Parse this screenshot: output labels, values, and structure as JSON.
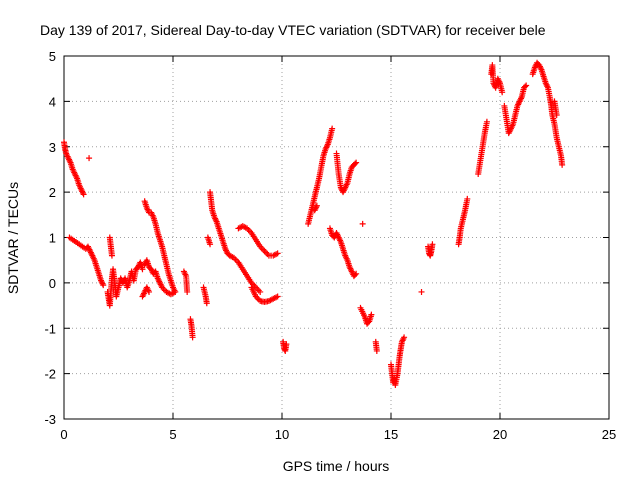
{
  "chart_data": {
    "type": "scatter",
    "title": "Day 139 of 2017, Sidereal Day-to-day VTEC variation (SDTVAR) for receiver bele",
    "xlabel": "GPS time / hours",
    "ylabel": "SDTVAR / TECUs",
    "xlim": [
      0,
      25
    ],
    "ylim": [
      -3,
      5
    ],
    "xticks": [
      0,
      5,
      10,
      15,
      20,
      25
    ],
    "yticks": [
      -3,
      -2,
      -1,
      0,
      1,
      2,
      3,
      4,
      5
    ],
    "grid": true,
    "marker": "+",
    "color": "#ff0000",
    "series": [
      {
        "name": "SDTVAR",
        "segments": [
          [
            [
              0.0,
              3.1
            ],
            [
              0.05,
              2.95
            ],
            [
              0.1,
              2.85
            ],
            [
              0.2,
              2.75
            ],
            [
              0.3,
              2.65
            ],
            [
              0.4,
              2.5
            ],
            [
              0.5,
              2.4
            ],
            [
              0.6,
              2.3
            ],
            [
              0.7,
              2.15
            ],
            [
              0.8,
              2.05
            ],
            [
              0.9,
              1.95
            ]
          ],
          [
            [
              1.15,
              2.75
            ]
          ],
          [
            [
              0.25,
              1.0
            ],
            [
              0.4,
              0.95
            ],
            [
              0.55,
              0.9
            ],
            [
              0.7,
              0.85
            ],
            [
              0.85,
              0.8
            ],
            [
              1.0,
              0.75
            ],
            [
              1.1,
              0.8
            ],
            [
              1.2,
              0.7
            ],
            [
              1.3,
              0.6
            ],
            [
              1.4,
              0.5
            ],
            [
              1.5,
              0.35
            ],
            [
              1.6,
              0.2
            ],
            [
              1.7,
              0.05
            ],
            [
              1.8,
              -0.05
            ]
          ],
          [
            [
              2.0,
              -0.2
            ],
            [
              2.05,
              -0.35
            ],
            [
              2.1,
              -0.5
            ],
            [
              2.15,
              -0.2
            ],
            [
              2.2,
              0.1
            ],
            [
              2.25,
              0.3
            ],
            [
              2.3,
              0.1
            ],
            [
              2.35,
              -0.1
            ],
            [
              2.4,
              -0.3
            ],
            [
              2.5,
              -0.1
            ],
            [
              2.6,
              0.1
            ],
            [
              2.7,
              0.0
            ],
            [
              2.8,
              0.1
            ],
            [
              2.9,
              -0.1
            ],
            [
              3.0,
              0.05
            ],
            [
              3.1,
              0.25
            ],
            [
              3.2,
              0.05
            ],
            [
              3.3,
              0.3
            ],
            [
              3.4,
              0.35
            ],
            [
              3.5,
              0.45
            ],
            [
              3.6,
              0.3
            ]
          ],
          [
            [
              2.1,
              1.0
            ],
            [
              2.15,
              0.8
            ],
            [
              2.2,
              0.6
            ]
          ],
          [
            [
              3.7,
              0.4
            ],
            [
              3.8,
              0.5
            ],
            [
              3.9,
              0.35
            ],
            [
              4.0,
              0.3
            ],
            [
              4.1,
              0.2
            ],
            [
              4.2,
              0.25
            ],
            [
              4.3,
              0.1
            ],
            [
              4.4,
              0.0
            ],
            [
              4.5,
              -0.1
            ],
            [
              4.7,
              -0.2
            ],
            [
              4.9,
              -0.25
            ],
            [
              5.1,
              -0.2
            ]
          ],
          [
            [
              3.6,
              -0.3
            ],
            [
              3.7,
              -0.2
            ],
            [
              3.8,
              -0.1
            ],
            [
              3.9,
              -0.2
            ]
          ],
          [
            [
              3.7,
              1.8
            ],
            [
              3.8,
              1.65
            ],
            [
              3.9,
              1.55
            ],
            [
              4.0,
              1.55
            ],
            [
              4.1,
              1.45
            ],
            [
              4.2,
              1.3
            ],
            [
              4.3,
              1.1
            ],
            [
              4.4,
              0.95
            ],
            [
              4.5,
              0.8
            ],
            [
              4.6,
              0.6
            ],
            [
              4.7,
              0.4
            ],
            [
              4.8,
              0.2
            ],
            [
              4.9,
              0.05
            ],
            [
              5.0,
              -0.1
            ],
            [
              5.1,
              -0.2
            ]
          ],
          [
            [
              5.5,
              0.25
            ],
            [
              5.6,
              0.15
            ],
            [
              5.65,
              -0.2
            ]
          ],
          [
            [
              5.8,
              -0.8
            ],
            [
              5.85,
              -0.95
            ],
            [
              5.9,
              -1.2
            ]
          ],
          [
            [
              6.4,
              -0.1
            ],
            [
              6.5,
              -0.3
            ],
            [
              6.55,
              -0.45
            ]
          ],
          [
            [
              6.7,
              2.0
            ],
            [
              6.75,
              1.8
            ],
            [
              6.8,
              1.6
            ],
            [
              6.9,
              1.45
            ],
            [
              7.0,
              1.35
            ],
            [
              7.1,
              1.2
            ],
            [
              7.2,
              1.05
            ],
            [
              7.3,
              0.9
            ],
            [
              7.4,
              0.75
            ],
            [
              7.5,
              0.65
            ],
            [
              7.6,
              0.6
            ],
            [
              7.8,
              0.55
            ],
            [
              8.0,
              0.45
            ],
            [
              8.2,
              0.3
            ],
            [
              8.4,
              0.15
            ],
            [
              8.6,
              0.0
            ],
            [
              8.8,
              -0.1
            ],
            [
              9.0,
              -0.2
            ]
          ],
          [
            [
              6.6,
              1.0
            ],
            [
              6.7,
              0.85
            ]
          ],
          [
            [
              8.0,
              1.2
            ],
            [
              8.2,
              1.25
            ],
            [
              8.4,
              1.2
            ],
            [
              8.6,
              1.1
            ],
            [
              8.8,
              0.95
            ],
            [
              9.0,
              0.8
            ],
            [
              9.2,
              0.7
            ],
            [
              9.4,
              0.6
            ],
            [
              9.6,
              0.6
            ],
            [
              9.8,
              0.65
            ]
          ],
          [
            [
              8.6,
              -0.1
            ],
            [
              8.8,
              -0.3
            ],
            [
              9.0,
              -0.4
            ],
            [
              9.2,
              -0.42
            ],
            [
              9.4,
              -0.4
            ],
            [
              9.6,
              -0.35
            ],
            [
              9.8,
              -0.3
            ]
          ],
          [
            [
              10.05,
              -1.3
            ],
            [
              10.1,
              -1.45
            ],
            [
              10.15,
              -1.5
            ],
            [
              10.2,
              -1.35
            ]
          ],
          [
            [
              11.2,
              1.3
            ],
            [
              11.3,
              1.5
            ],
            [
              11.4,
              1.7
            ],
            [
              11.5,
              1.9
            ],
            [
              11.6,
              2.1
            ],
            [
              11.7,
              2.3
            ],
            [
              11.8,
              2.55
            ],
            [
              11.9,
              2.8
            ],
            [
              12.0,
              2.95
            ],
            [
              12.1,
              3.05
            ],
            [
              12.2,
              3.2
            ],
            [
              12.3,
              3.4
            ]
          ],
          [
            [
              11.5,
              1.6
            ],
            [
              11.6,
              1.7
            ]
          ],
          [
            [
              12.2,
              1.2
            ],
            [
              12.3,
              1.05
            ],
            [
              12.4,
              1.0
            ],
            [
              12.5,
              1.1
            ],
            [
              12.6,
              1.0
            ],
            [
              12.7,
              0.9
            ],
            [
              12.8,
              0.75
            ],
            [
              12.9,
              0.6
            ],
            [
              13.0,
              0.5
            ],
            [
              13.1,
              0.35
            ],
            [
              13.2,
              0.25
            ],
            [
              13.3,
              0.15
            ],
            [
              13.4,
              0.2
            ]
          ],
          [
            [
              12.5,
              2.85
            ],
            [
              12.6,
              2.4
            ],
            [
              12.7,
              2.1
            ],
            [
              12.8,
              2.0
            ],
            [
              12.9,
              2.1
            ],
            [
              13.0,
              2.2
            ],
            [
              13.1,
              2.4
            ],
            [
              13.2,
              2.55
            ],
            [
              13.3,
              2.6
            ],
            [
              13.4,
              2.65
            ]
          ],
          [
            [
              13.7,
              1.3
            ]
          ],
          [
            [
              13.6,
              -0.55
            ],
            [
              13.8,
              -0.75
            ],
            [
              13.9,
              -0.9
            ],
            [
              14.0,
              -0.85
            ],
            [
              14.1,
              -0.7
            ]
          ],
          [
            [
              14.3,
              -1.3
            ],
            [
              14.35,
              -1.5
            ]
          ],
          [
            [
              15.0,
              -1.8
            ],
            [
              15.05,
              -2.0
            ],
            [
              15.1,
              -2.2
            ],
            [
              15.15,
              -2.1
            ],
            [
              15.2,
              -2.25
            ],
            [
              15.3,
              -2.0
            ],
            [
              15.35,
              -1.8
            ],
            [
              15.4,
              -1.6
            ],
            [
              15.45,
              -1.45
            ],
            [
              15.5,
              -1.3
            ],
            [
              15.6,
              -1.2
            ]
          ],
          [
            [
              16.4,
              -0.2
            ]
          ],
          [
            [
              16.7,
              0.8
            ],
            [
              16.75,
              0.65
            ],
            [
              16.8,
              0.6
            ],
            [
              16.85,
              0.7
            ],
            [
              16.9,
              0.85
            ]
          ],
          [
            [
              18.1,
              0.85
            ],
            [
              18.15,
              1.0
            ],
            [
              18.2,
              1.2
            ],
            [
              18.3,
              1.4
            ],
            [
              18.4,
              1.6
            ],
            [
              18.5,
              1.85
            ]
          ],
          [
            [
              19.0,
              2.4
            ],
            [
              19.1,
              2.7
            ],
            [
              19.2,
              3.0
            ],
            [
              19.3,
              3.3
            ],
            [
              19.4,
              3.55
            ]
          ],
          [
            [
              19.6,
              4.6
            ],
            [
              19.65,
              4.8
            ],
            [
              19.7,
              4.4
            ],
            [
              19.8,
              4.3
            ],
            [
              19.9,
              4.5
            ],
            [
              20.0,
              4.4
            ],
            [
              20.1,
              4.2
            ]
          ],
          [
            [
              20.2,
              3.9
            ],
            [
              20.3,
              3.6
            ],
            [
              20.4,
              3.3
            ],
            [
              20.5,
              3.4
            ],
            [
              20.6,
              3.5
            ],
            [
              20.7,
              3.7
            ],
            [
              20.8,
              3.9
            ],
            [
              20.9,
              4.0
            ],
            [
              21.0,
              4.1
            ],
            [
              21.1,
              4.3
            ],
            [
              21.2,
              4.35
            ]
          ],
          [
            [
              21.5,
              4.6
            ],
            [
              21.6,
              4.75
            ],
            [
              21.7,
              4.85
            ],
            [
              21.8,
              4.8
            ],
            [
              21.9,
              4.7
            ],
            [
              22.0,
              4.55
            ],
            [
              22.1,
              4.4
            ],
            [
              22.2,
              4.3
            ],
            [
              22.3,
              4.05
            ],
            [
              22.35,
              3.9
            ],
            [
              22.4,
              3.7
            ],
            [
              22.5,
              3.5
            ],
            [
              22.6,
              3.2
            ],
            [
              22.7,
              3.0
            ],
            [
              22.8,
              2.8
            ],
            [
              22.85,
              2.6
            ]
          ],
          [
            [
              22.5,
              4.0
            ],
            [
              22.6,
              3.7
            ]
          ]
        ]
      }
    ]
  }
}
